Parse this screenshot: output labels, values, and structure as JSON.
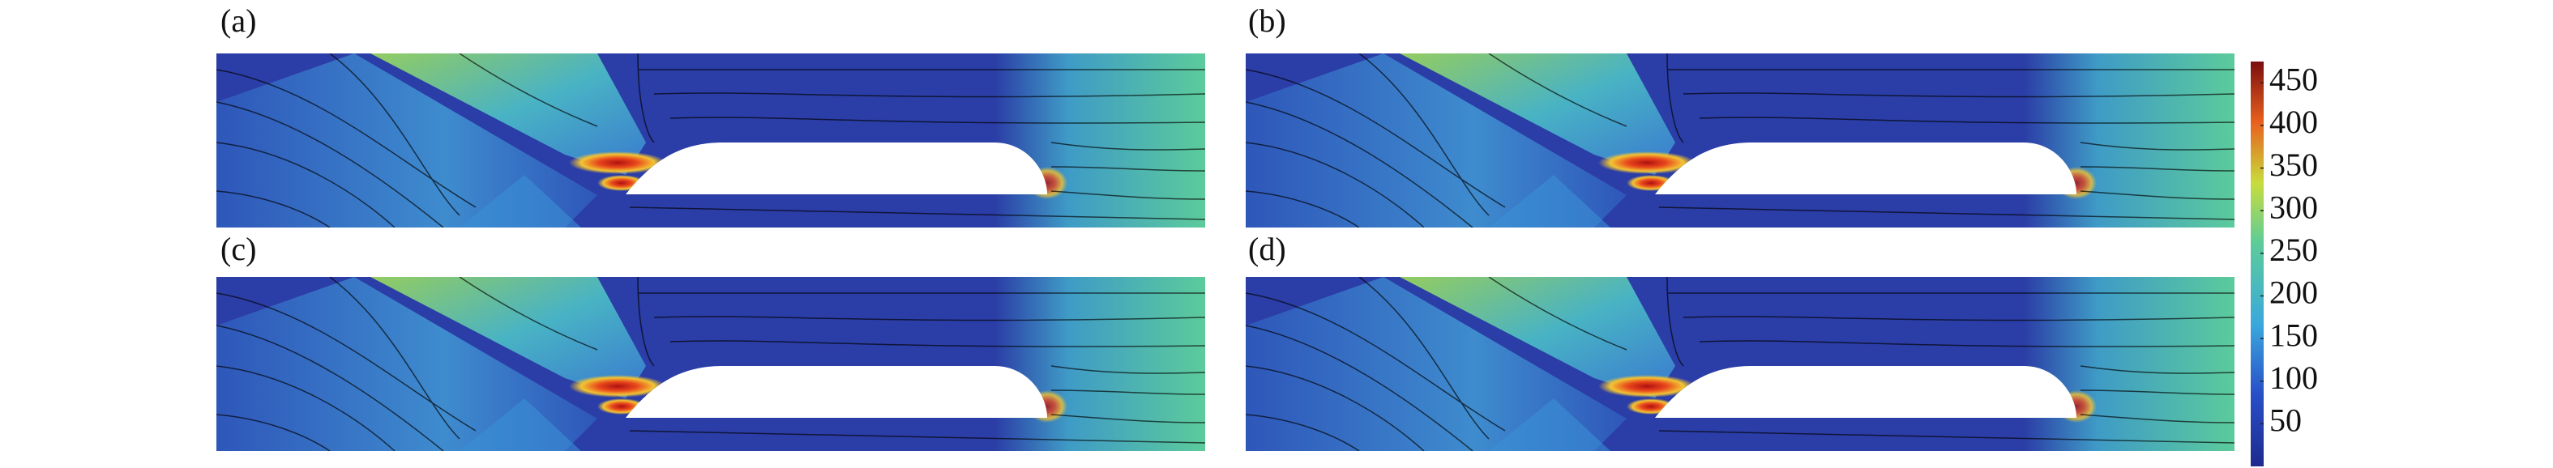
{
  "panels": [
    {
      "label": "(a)"
    },
    {
      "label": "(b)"
    },
    {
      "label": "(c)"
    },
    {
      "label": "(d)"
    }
  ],
  "colorbar": {
    "lim": [
      0,
      475
    ],
    "ticks": [
      50,
      100,
      150,
      200,
      250,
      300,
      350,
      400,
      450
    ]
  }
}
